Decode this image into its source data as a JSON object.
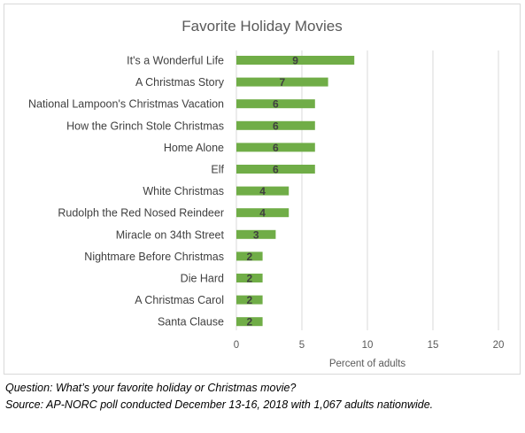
{
  "chart_data": {
    "type": "bar",
    "orientation": "horizontal",
    "title": "Favorite Holiday Movies",
    "xlabel": "Percent of adults",
    "ylabel": "",
    "xlim": [
      0,
      20
    ],
    "xticks": [
      "0",
      "5",
      "10",
      "15",
      "20"
    ],
    "grid": true,
    "categories": [
      "It's a Wonderful Life",
      "A Christmas Story",
      "National Lampoon's Christmas Vacation",
      "How the Grinch Stole Christmas",
      "Home Alone",
      "Elf",
      "White Christmas",
      "Rudolph the Red Nosed Reindeer",
      "Miracle on 34th Street",
      "Nightmare Before Christmas",
      "Die Hard",
      "A Christmas Carol",
      "Santa Clause"
    ],
    "values": [
      9,
      7,
      6,
      6,
      6,
      6,
      4,
      4,
      3,
      2,
      2,
      2,
      2
    ],
    "bar_color": "#70ad47"
  },
  "notes": {
    "question": "Question: What’s your favorite holiday or Christmas movie?",
    "source": "Source: AP-NORC poll conducted December 13-16, 2018 with 1,067 adults nationwide."
  }
}
